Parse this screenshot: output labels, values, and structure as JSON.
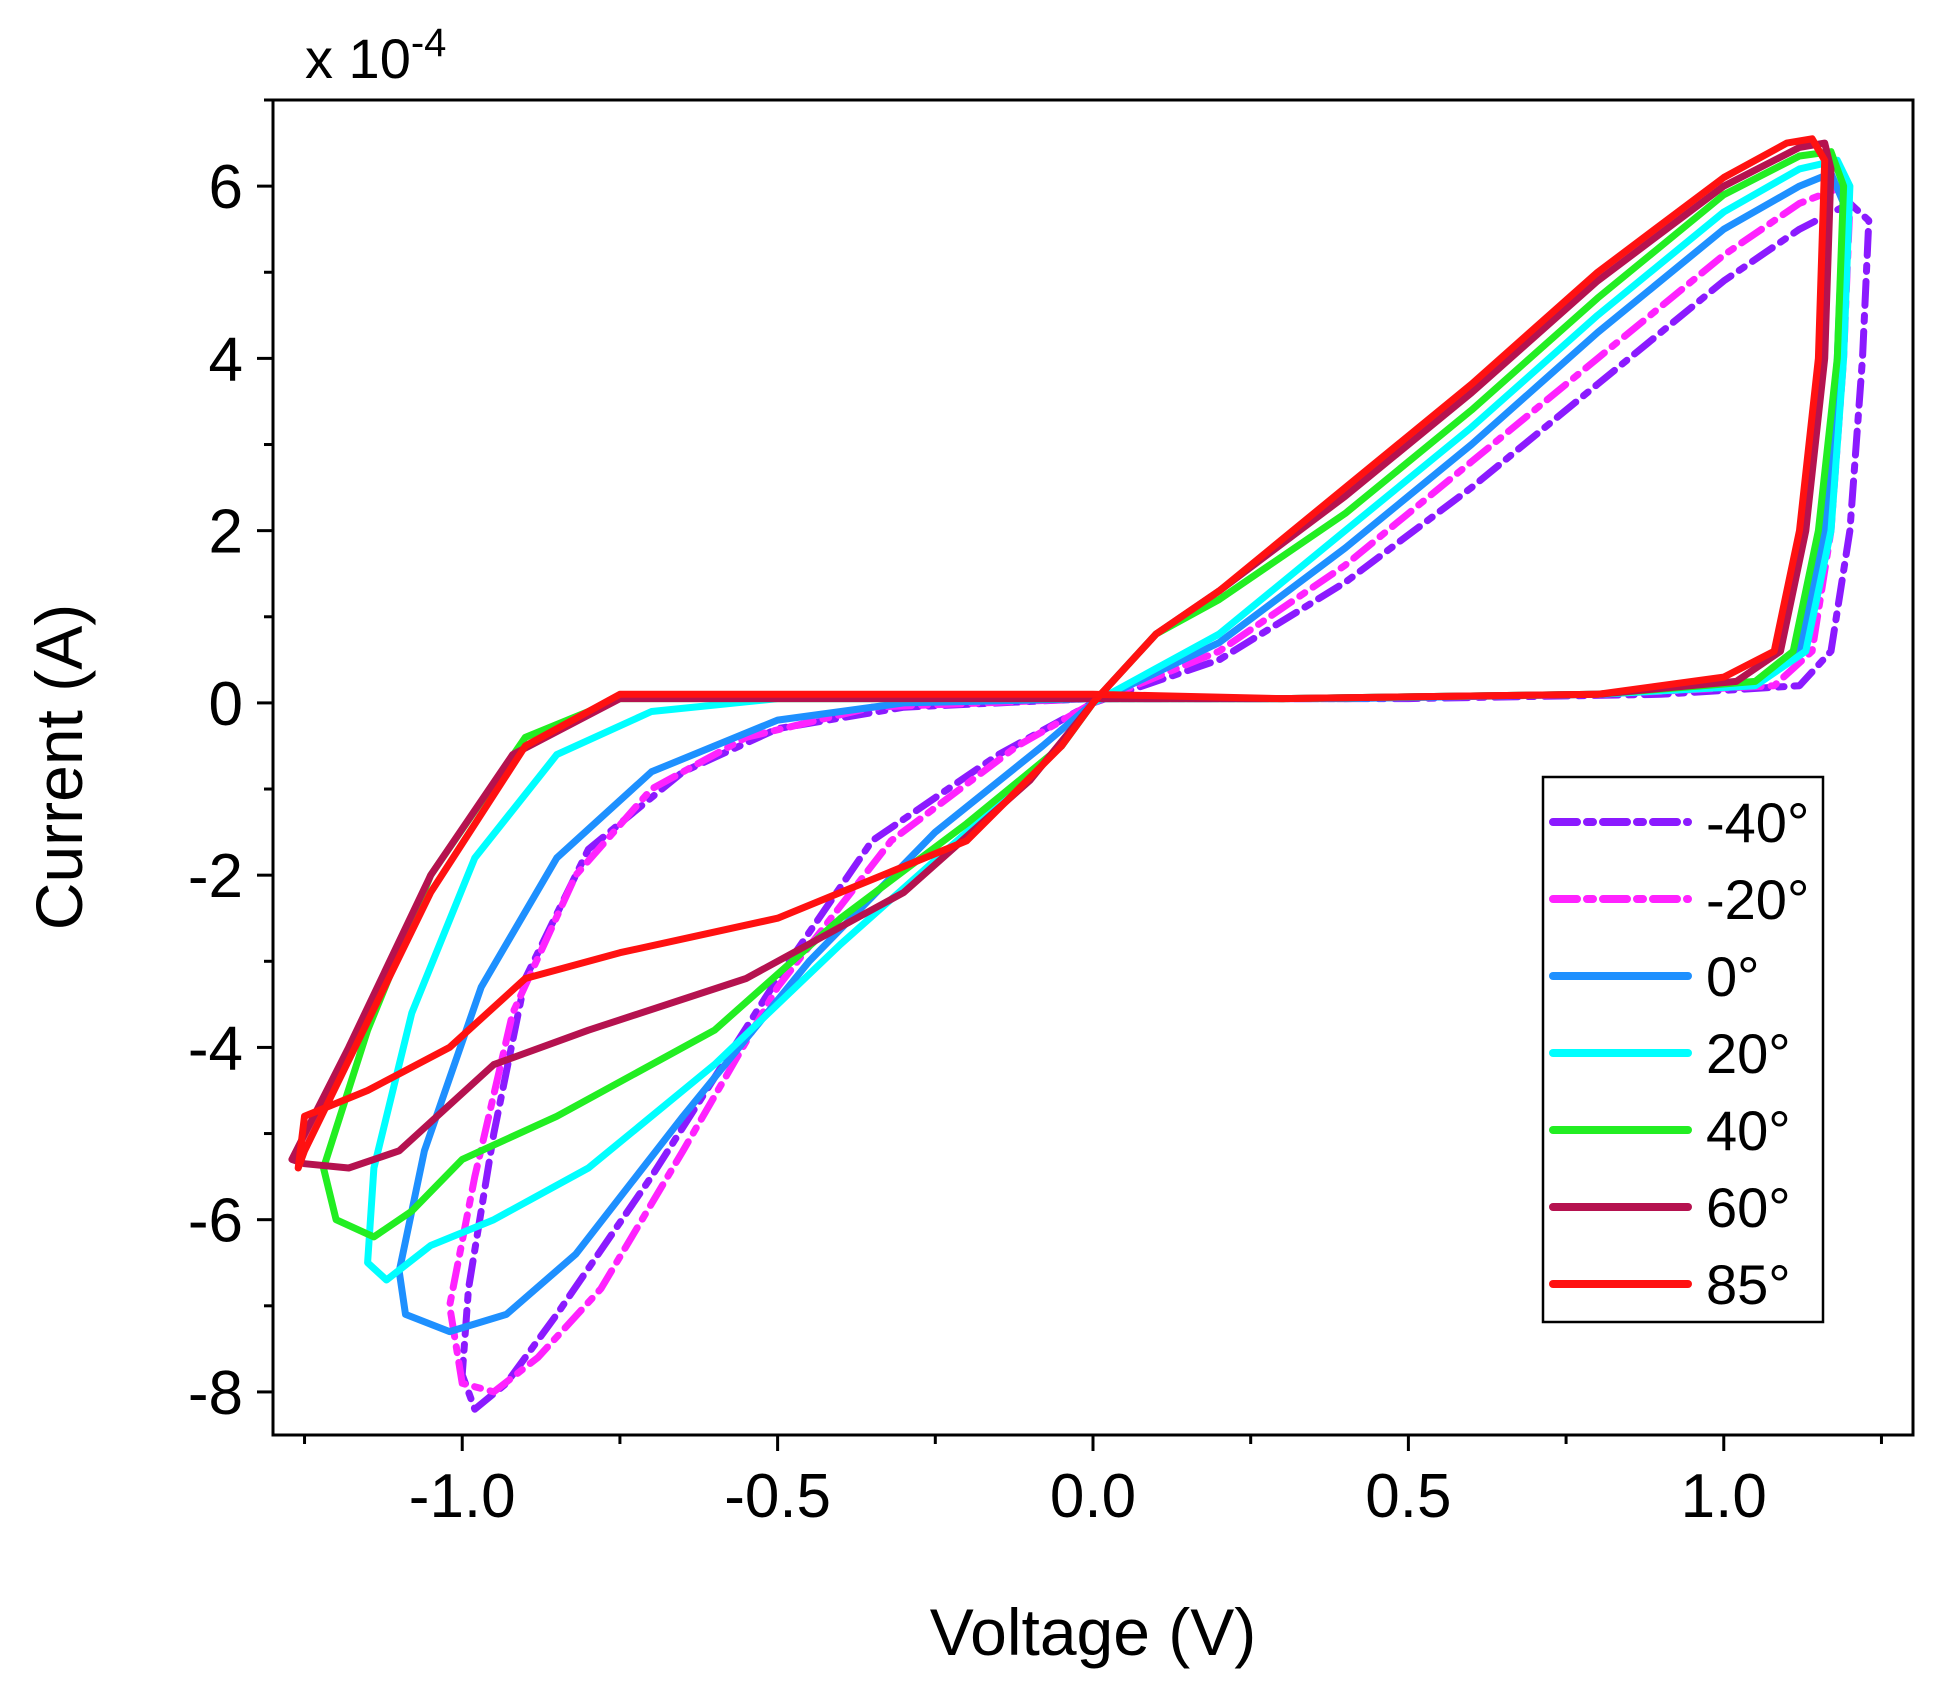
{
  "chart_data": {
    "type": "line",
    "title": "",
    "xlabel": "Voltage (V)",
    "ylabel": "Current (A)",
    "y_multiplier": {
      "prefix": "x 10",
      "exponent": "-4"
    },
    "xlim": [
      -1.3,
      1.3
    ],
    "ylim": [
      -8.5,
      7.0
    ],
    "x_ticks": [
      -1.0,
      -0.5,
      0.0,
      0.5,
      1.0
    ],
    "x_tick_labels": [
      "-1.0",
      "-0.5",
      "0.0",
      "0.5",
      "1.0"
    ],
    "y_ticks": [
      -8,
      -6,
      -4,
      -2,
      0,
      2,
      4,
      6
    ],
    "y_tick_labels": [
      "-8",
      "-6",
      "-4",
      "-2",
      "0",
      "2",
      "4",
      "6"
    ],
    "grid": false,
    "legend_position": "bottom-right",
    "series": [
      {
        "name": "-40°",
        "color": "#8b1aff",
        "dash": "dashdot",
        "points": [
          [
            0,
            0
          ],
          [
            0.2,
            0.5
          ],
          [
            0.4,
            1.4
          ],
          [
            0.6,
            2.5
          ],
          [
            0.8,
            3.7
          ],
          [
            1.0,
            4.9
          ],
          [
            1.12,
            5.5
          ],
          [
            1.2,
            5.8
          ],
          [
            1.23,
            5.6
          ],
          [
            1.22,
            4.0
          ],
          [
            1.2,
            2.0
          ],
          [
            1.17,
            0.6
          ],
          [
            1.12,
            0.2
          ],
          [
            0.9,
            0.1
          ],
          [
            0.5,
            0.05
          ],
          [
            0.0,
            0.05
          ],
          [
            -0.3,
            -0.05
          ],
          [
            -0.5,
            -0.3
          ],
          [
            -0.65,
            -0.8
          ],
          [
            -0.8,
            -1.7
          ],
          [
            -0.9,
            -3.2
          ],
          [
            -0.95,
            -5.0
          ],
          [
            -0.99,
            -6.8
          ],
          [
            -1.0,
            -7.8
          ],
          [
            -0.98,
            -8.2
          ],
          [
            -0.93,
            -7.9
          ],
          [
            -0.85,
            -7.1
          ],
          [
            -0.7,
            -5.5
          ],
          [
            -0.5,
            -3.2
          ],
          [
            -0.35,
            -1.6
          ],
          [
            -0.15,
            -0.6
          ],
          [
            0,
            0
          ]
        ]
      },
      {
        "name": "-20°",
        "color": "#ff22ff",
        "dash": "dashdot",
        "points": [
          [
            0,
            0
          ],
          [
            0.2,
            0.6
          ],
          [
            0.4,
            1.6
          ],
          [
            0.6,
            2.8
          ],
          [
            0.8,
            4.0
          ],
          [
            1.0,
            5.2
          ],
          [
            1.12,
            5.8
          ],
          [
            1.19,
            6.0
          ],
          [
            1.2,
            5.8
          ],
          [
            1.19,
            4.0
          ],
          [
            1.17,
            2.0
          ],
          [
            1.14,
            0.6
          ],
          [
            1.08,
            0.2
          ],
          [
            0.8,
            0.1
          ],
          [
            0.4,
            0.05
          ],
          [
            0.0,
            0.05
          ],
          [
            -0.35,
            -0.05
          ],
          [
            -0.55,
            -0.4
          ],
          [
            -0.7,
            -1.0
          ],
          [
            -0.82,
            -2.0
          ],
          [
            -0.92,
            -3.6
          ],
          [
            -0.98,
            -5.5
          ],
          [
            -1.02,
            -7.0
          ],
          [
            -1.0,
            -7.9
          ],
          [
            -0.95,
            -8.0
          ],
          [
            -0.88,
            -7.6
          ],
          [
            -0.78,
            -6.8
          ],
          [
            -0.65,
            -5.2
          ],
          [
            -0.5,
            -3.3
          ],
          [
            -0.32,
            -1.6
          ],
          [
            -0.12,
            -0.5
          ],
          [
            0,
            0
          ]
        ]
      },
      {
        "name": "0°",
        "color": "#1e90ff",
        "dash": "solid",
        "points": [
          [
            0,
            0
          ],
          [
            0.2,
            0.7
          ],
          [
            0.4,
            1.8
          ],
          [
            0.6,
            3.0
          ],
          [
            0.8,
            4.3
          ],
          [
            1.0,
            5.5
          ],
          [
            1.12,
            6.0
          ],
          [
            1.17,
            6.15
          ],
          [
            1.19,
            5.8
          ],
          [
            1.18,
            4.0
          ],
          [
            1.16,
            2.0
          ],
          [
            1.12,
            0.6
          ],
          [
            1.05,
            0.2
          ],
          [
            0.8,
            0.1
          ],
          [
            0.4,
            0.05
          ],
          [
            0.0,
            0.05
          ],
          [
            -0.3,
            0.0
          ],
          [
            -0.5,
            -0.2
          ],
          [
            -0.7,
            -0.8
          ],
          [
            -0.85,
            -1.8
          ],
          [
            -0.97,
            -3.3
          ],
          [
            -1.06,
            -5.2
          ],
          [
            -1.1,
            -6.6
          ],
          [
            -1.09,
            -7.1
          ],
          [
            -1.02,
            -7.3
          ],
          [
            -0.93,
            -7.1
          ],
          [
            -0.82,
            -6.4
          ],
          [
            -0.65,
            -4.8
          ],
          [
            -0.45,
            -3.0
          ],
          [
            -0.25,
            -1.5
          ],
          [
            -0.08,
            -0.5
          ],
          [
            0,
            0
          ]
        ]
      },
      {
        "name": "20°",
        "color": "#00ffff",
        "dash": "solid",
        "points": [
          [
            0,
            0
          ],
          [
            0.2,
            0.8
          ],
          [
            0.4,
            2.0
          ],
          [
            0.6,
            3.2
          ],
          [
            0.8,
            4.5
          ],
          [
            1.0,
            5.7
          ],
          [
            1.12,
            6.2
          ],
          [
            1.18,
            6.3
          ],
          [
            1.2,
            6.0
          ],
          [
            1.19,
            4.0
          ],
          [
            1.17,
            2.0
          ],
          [
            1.13,
            0.6
          ],
          [
            1.05,
            0.2
          ],
          [
            0.8,
            0.1
          ],
          [
            0.3,
            0.05
          ],
          [
            0.0,
            0.05
          ],
          [
            -0.5,
            0.05
          ],
          [
            -0.7,
            -0.1
          ],
          [
            -0.85,
            -0.6
          ],
          [
            -0.98,
            -1.8
          ],
          [
            -1.08,
            -3.6
          ],
          [
            -1.14,
            -5.4
          ],
          [
            -1.15,
            -6.5
          ],
          [
            -1.12,
            -6.7
          ],
          [
            -1.05,
            -6.3
          ],
          [
            -0.95,
            -6.0
          ],
          [
            -0.8,
            -5.4
          ],
          [
            -0.6,
            -4.2
          ],
          [
            -0.4,
            -2.8
          ],
          [
            -0.2,
            -1.5
          ],
          [
            -0.05,
            -0.5
          ],
          [
            0,
            0
          ]
        ]
      },
      {
        "name": "40°",
        "color": "#22ee22",
        "dash": "solid",
        "points": [
          [
            0,
            0
          ],
          [
            0.1,
            0.8
          ],
          [
            0.2,
            1.2
          ],
          [
            0.4,
            2.2
          ],
          [
            0.6,
            3.4
          ],
          [
            0.8,
            4.7
          ],
          [
            1.0,
            5.9
          ],
          [
            1.12,
            6.35
          ],
          [
            1.17,
            6.4
          ],
          [
            1.19,
            6.0
          ],
          [
            1.18,
            4.0
          ],
          [
            1.15,
            2.0
          ],
          [
            1.11,
            0.6
          ],
          [
            1.05,
            0.25
          ],
          [
            0.8,
            0.1
          ],
          [
            0.3,
            0.05
          ],
          [
            0.0,
            0.05
          ],
          [
            -0.5,
            0.05
          ],
          [
            -0.75,
            0.05
          ],
          [
            -0.9,
            -0.4
          ],
          [
            -1.05,
            -2.0
          ],
          [
            -1.15,
            -3.8
          ],
          [
            -1.22,
            -5.4
          ],
          [
            -1.2,
            -6.0
          ],
          [
            -1.14,
            -6.2
          ],
          [
            -1.08,
            -5.9
          ],
          [
            -1.0,
            -5.3
          ],
          [
            -0.85,
            -4.8
          ],
          [
            -0.6,
            -3.8
          ],
          [
            -0.4,
            -2.5
          ],
          [
            -0.2,
            -1.4
          ],
          [
            -0.05,
            -0.5
          ],
          [
            0,
            0
          ]
        ]
      },
      {
        "name": "60°",
        "color": "#b5124f",
        "dash": "solid",
        "points": [
          [
            0,
            0
          ],
          [
            0.1,
            0.8
          ],
          [
            0.2,
            1.3
          ],
          [
            0.4,
            2.4
          ],
          [
            0.6,
            3.6
          ],
          [
            0.8,
            4.9
          ],
          [
            1.0,
            6.0
          ],
          [
            1.12,
            6.45
          ],
          [
            1.16,
            6.5
          ],
          [
            1.17,
            6.2
          ],
          [
            1.16,
            4.0
          ],
          [
            1.13,
            2.0
          ],
          [
            1.09,
            0.6
          ],
          [
            1.02,
            0.25
          ],
          [
            0.8,
            0.1
          ],
          [
            0.3,
            0.05
          ],
          [
            0.0,
            0.05
          ],
          [
            -0.5,
            0.05
          ],
          [
            -0.75,
            0.05
          ],
          [
            -0.92,
            -0.6
          ],
          [
            -1.05,
            -2.0
          ],
          [
            -1.18,
            -4.0
          ],
          [
            -1.27,
            -5.3
          ],
          [
            -1.25,
            -5.35
          ],
          [
            -1.18,
            -5.4
          ],
          [
            -1.1,
            -5.2
          ],
          [
            -0.95,
            -4.2
          ],
          [
            -0.8,
            -3.8
          ],
          [
            -0.55,
            -3.2
          ],
          [
            -0.3,
            -2.2
          ],
          [
            -0.1,
            -0.9
          ],
          [
            0,
            0
          ]
        ]
      },
      {
        "name": "85°",
        "color": "#ff1111",
        "dash": "solid",
        "points": [
          [
            0,
            0
          ],
          [
            0.1,
            0.8
          ],
          [
            0.2,
            1.3
          ],
          [
            0.4,
            2.5
          ],
          [
            0.6,
            3.7
          ],
          [
            0.8,
            5.0
          ],
          [
            1.0,
            6.1
          ],
          [
            1.1,
            6.5
          ],
          [
            1.14,
            6.55
          ],
          [
            1.16,
            6.3
          ],
          [
            1.15,
            4.0
          ],
          [
            1.12,
            2.0
          ],
          [
            1.08,
            0.6
          ],
          [
            1.0,
            0.3
          ],
          [
            0.8,
            0.1
          ],
          [
            0.3,
            0.05
          ],
          [
            0.0,
            0.1
          ],
          [
            -0.5,
            0.1
          ],
          [
            -0.75,
            0.1
          ],
          [
            -0.9,
            -0.5
          ],
          [
            -1.05,
            -2.2
          ],
          [
            -1.17,
            -4.0
          ],
          [
            -1.25,
            -5.2
          ],
          [
            -1.26,
            -5.4
          ],
          [
            -1.25,
            -4.8
          ],
          [
            -1.15,
            -4.5
          ],
          [
            -1.02,
            -4.0
          ],
          [
            -0.9,
            -3.2
          ],
          [
            -0.75,
            -2.9
          ],
          [
            -0.5,
            -2.5
          ],
          [
            -0.2,
            -1.6
          ],
          [
            -0.05,
            -0.5
          ],
          [
            0,
            0
          ]
        ]
      }
    ]
  }
}
